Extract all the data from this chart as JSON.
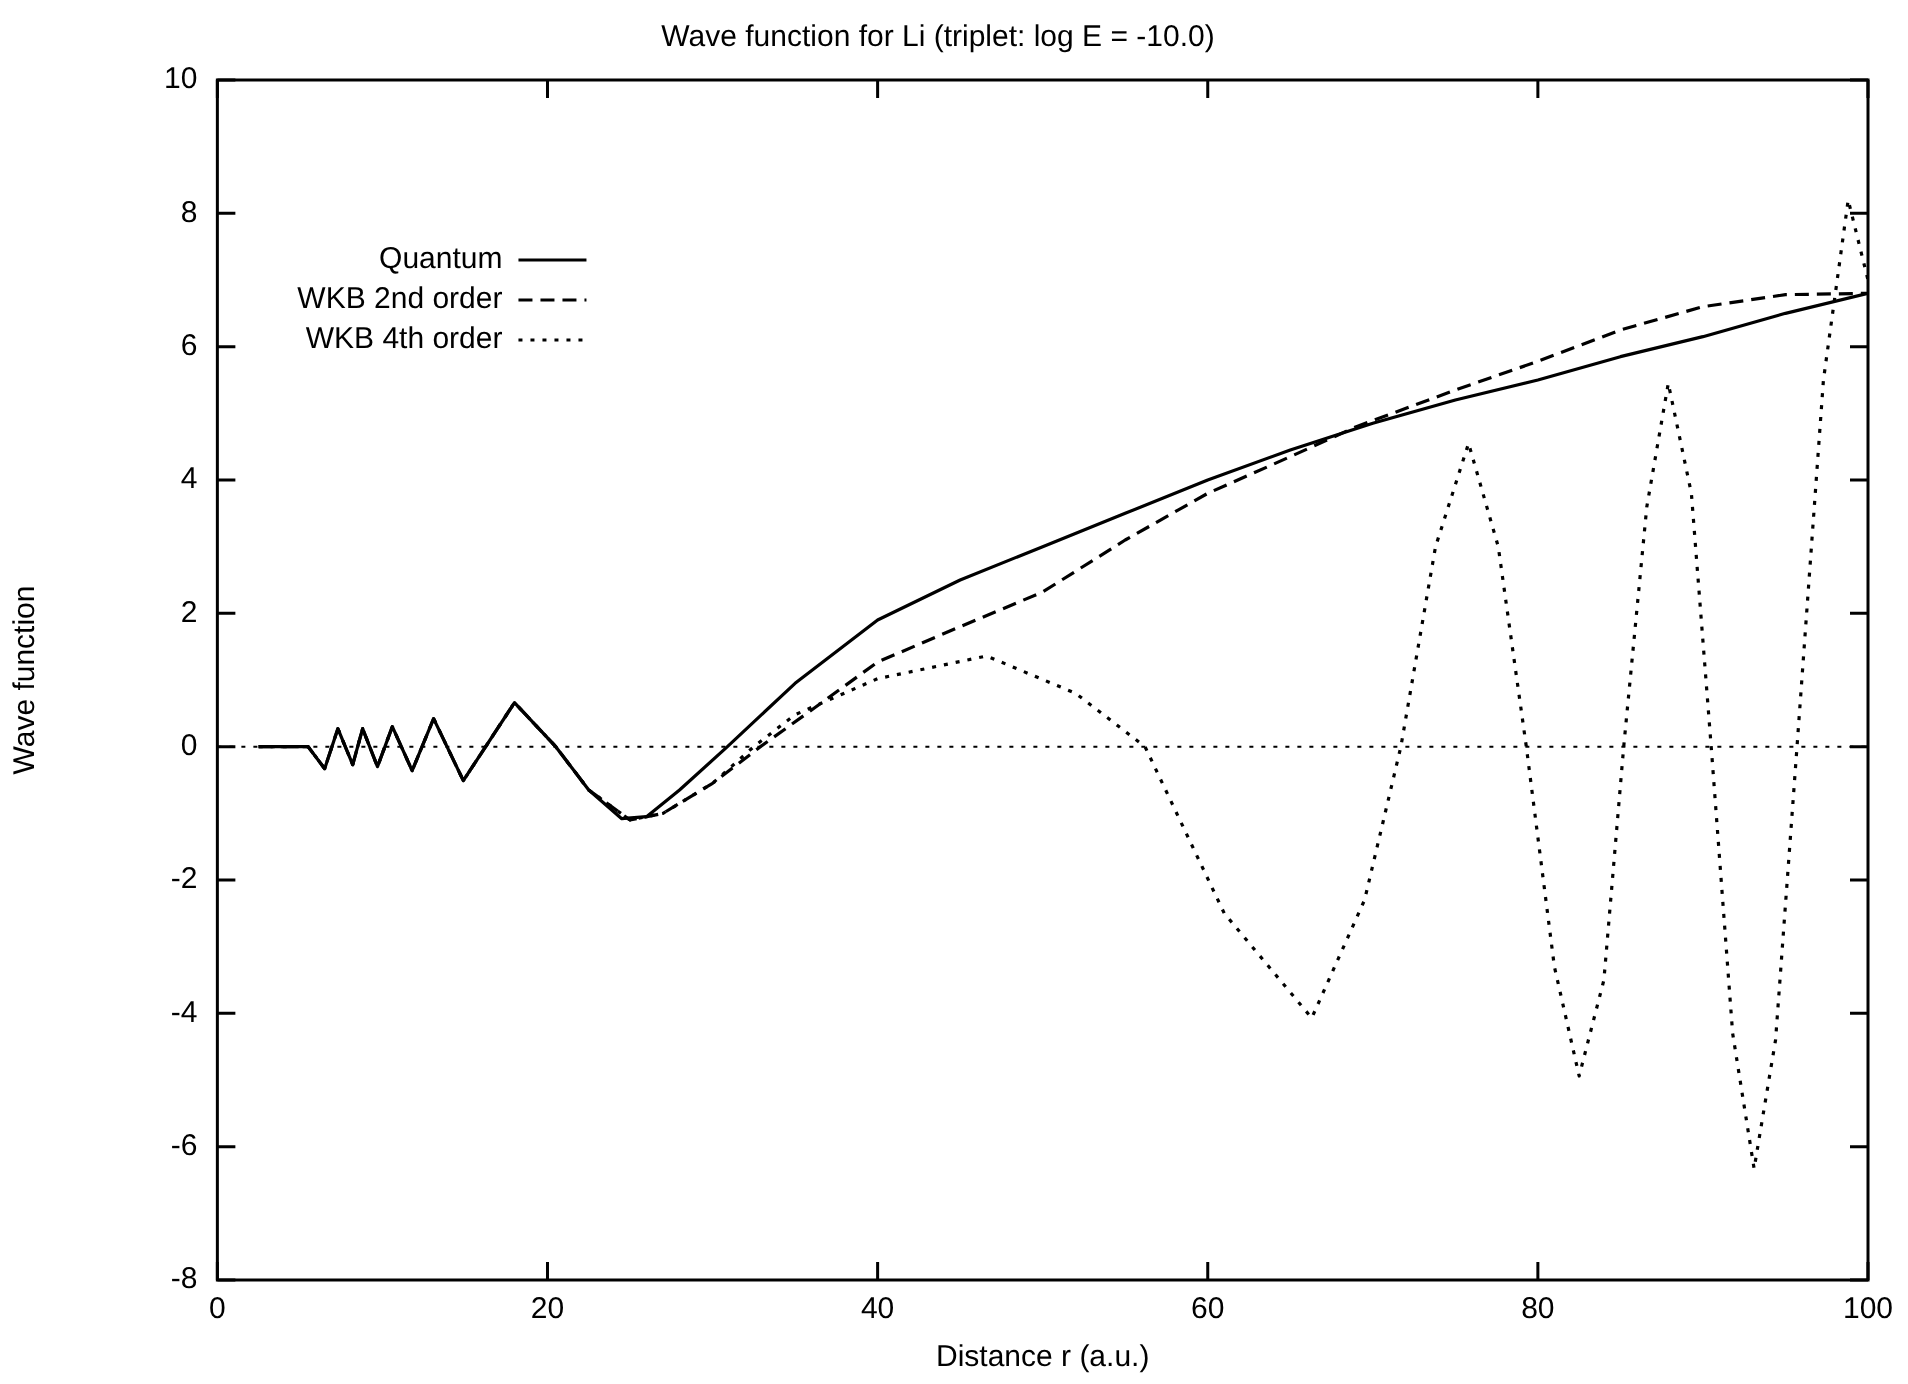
{
  "chart_data": {
    "type": "line",
    "title": "Wave function for Li (triplet: log E = -10.0)",
    "xlabel": "Distance r (a.u.)",
    "ylabel": "Wave function",
    "xlim": [
      0,
      100
    ],
    "xticks": [
      0,
      20,
      40,
      60,
      80,
      100
    ],
    "ylim": [
      -8,
      10
    ],
    "yticks": [
      -8,
      -6,
      -4,
      -2,
      0,
      2,
      4,
      6,
      8,
      10
    ],
    "grid": false,
    "legend": "top left",
    "marker": "none",
    "ref_lines": [
      {
        "axis": "y",
        "value": 0,
        "line_style": "dotted",
        "color": "#000000"
      }
    ],
    "series": [
      {
        "name": "Quantum",
        "color": "#000000",
        "line_style": "solid",
        "x": [
          2.5,
          5.5,
          6.5,
          7.3,
          8.2,
          8.8,
          9.7,
          10.6,
          11.8,
          13.1,
          14.9,
          18,
          20.5,
          22.5,
          24.5,
          26,
          28,
          30.9,
          35,
          40,
          45,
          50,
          55,
          60,
          65,
          70,
          75,
          80,
          85,
          90,
          95,
          100
        ],
        "values": [
          0,
          0,
          -0.33,
          0.27,
          -0.27,
          0.27,
          -0.3,
          0.3,
          -0.36,
          0.42,
          -0.51,
          0.66,
          0,
          -0.65,
          -1.08,
          -1.05,
          -0.65,
          0,
          0.95,
          1.9,
          2.5,
          3.0,
          3.5,
          4.0,
          4.45,
          4.85,
          5.2,
          5.5,
          5.85,
          6.15,
          6.5,
          6.8
        ]
      },
      {
        "name": "WKB 2nd order",
        "color": "#000000",
        "line_style": "dashed",
        "x": [
          2.5,
          5.5,
          6.5,
          7.3,
          8.2,
          8.8,
          9.7,
          10.6,
          11.8,
          13.1,
          14.9,
          18,
          20.5,
          22.5,
          25,
          27,
          30,
          32.9,
          36,
          40,
          45,
          50,
          55,
          60,
          65,
          69,
          75,
          80,
          85,
          90,
          95,
          100
        ],
        "values": [
          0,
          0,
          -0.33,
          0.27,
          -0.27,
          0.27,
          -0.3,
          0.3,
          -0.36,
          0.42,
          -0.51,
          0.66,
          0,
          -0.65,
          -1.1,
          -1.0,
          -0.55,
          0,
          0.55,
          1.27,
          1.8,
          2.32,
          3.1,
          3.8,
          4.35,
          4.8,
          5.35,
          5.78,
          6.25,
          6.6,
          6.78,
          6.8
        ]
      },
      {
        "name": "WKB 4th order",
        "color": "#000000",
        "line_style": "dotted",
        "x": [
          2.5,
          5.5,
          6.5,
          7.3,
          8.2,
          8.8,
          9.7,
          10.6,
          11.8,
          13.1,
          14.9,
          18,
          20.5,
          22.5,
          25,
          27,
          30,
          32.5,
          35,
          40,
          46.6,
          52,
          56.2,
          61,
          66.3,
          69.5,
          71.7,
          73.8,
          75.8,
          77.6,
          79.3,
          81,
          82.5,
          84,
          85.2,
          86.6,
          87.9,
          89.3,
          90.5,
          91.8,
          93.1,
          94.4,
          95.7,
          97.3,
          98.8,
          100
        ],
        "values": [
          0,
          0,
          -0.33,
          0.27,
          -0.27,
          0.27,
          -0.3,
          0.3,
          -0.36,
          0.42,
          -0.51,
          0.66,
          0,
          -0.65,
          -1.1,
          -1.0,
          -0.55,
          0,
          0.48,
          1.02,
          1.36,
          0.8,
          0,
          -2.5,
          -4.07,
          -2.3,
          0,
          3.0,
          4.55,
          3.0,
          0,
          -3.3,
          -4.94,
          -3.5,
          0,
          3.6,
          5.45,
          3.8,
          0,
          -4.3,
          -6.33,
          -4.4,
          0,
          5.5,
          8.2,
          7.0
        ]
      }
    ]
  }
}
